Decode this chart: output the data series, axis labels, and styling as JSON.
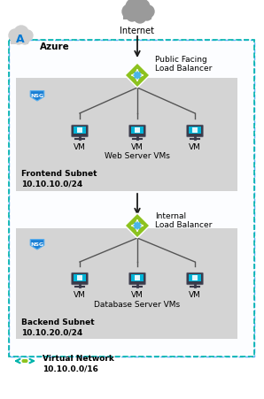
{
  "bg_color": "#ffffff",
  "azure_border_color": "#1e90ff",
  "subnet_color": "#d4d4d4",
  "vnet_border_color": "#00b4ab",
  "nsg_blue": "#1a7fd4",
  "lb_green": "#8dc21f",
  "vm_blue": "#0094d9",
  "vm_body": "#2a7ec0",
  "arrow_color": "#1a1a1a",
  "line_color": "#555555",
  "cloud_color": "#9a9a9a",
  "text_color": "#000000",
  "title_internet": "Internet",
  "title_public_lb": "Public Facing\nLoad Balancer",
  "title_internal_lb": "Internal\nLoad Balancer",
  "title_web_vms": "Web Server VMs",
  "title_db_vms": "Database Server VMs",
  "title_frontend": "Frontend Subnet\n10.10.10.0/24",
  "title_backend": "Backend Subnet\n10.10.20.0/24",
  "title_vnet": "Virtual Network\n10.10.0.0/16",
  "title_azure": "Azure",
  "label_vm": "VM",
  "label_nsg": "NSG",
  "fig_w": 2.98,
  "fig_h": 4.51,
  "dpi": 100
}
